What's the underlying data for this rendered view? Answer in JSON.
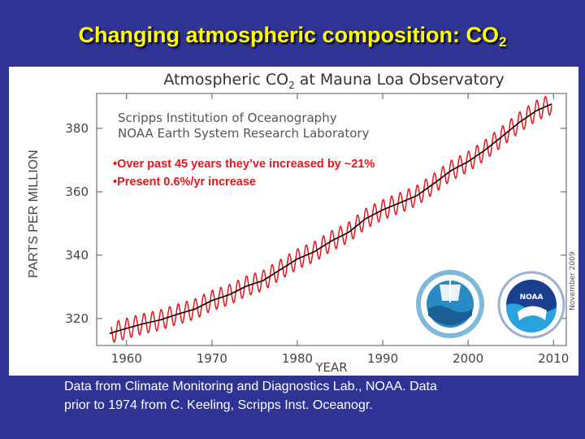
{
  "slide": {
    "title_main": "Changing atmospheric composition: CO",
    "title_sub": "2",
    "footer_line1": "Data from Climate Monitoring and Diagnostics Lab., NOAA. Data",
    "footer_line2": "prior to 1974 from C. Keeling, Scripps Inst. Oceanogr."
  },
  "chart_data": {
    "type": "line",
    "title_main": "Atmospheric CO",
    "title_sub": "2",
    "title_rest": " at Mauna Loa Observatory",
    "credit_line1": "Scripps Institution of Oceanography",
    "credit_line2": "NOAA Earth System Research Laboratory",
    "annotations": [
      "•Over past 45 years they’ve increased by ~21%",
      "•Present 0.6%/yr increase"
    ],
    "xlabel": "YEAR",
    "ylabel": "PARTS PER MILLION",
    "date_stamp": "November 2009",
    "logos": [
      "Scripps Institution of Oceanography seal",
      "NOAA logo"
    ],
    "xlim": [
      1956.5,
      2011.5
    ],
    "ylim": [
      311.5,
      391
    ],
    "xticks": [
      1960,
      1970,
      1980,
      1990,
      2000,
      2010
    ],
    "xtick_labels": [
      "1960",
      "1970",
      "1980",
      "1990",
      "2000",
      "2010"
    ],
    "yticks": [
      320,
      340,
      360,
      380
    ],
    "ytick_labels": [
      "320",
      "340",
      "360",
      "380"
    ],
    "grid": false,
    "series": [
      {
        "kind": "monthly",
        "color": "#e8161a",
        "x_range": [
          1958.2,
          2009.8
        ],
        "seasonal_amplitude_ppm": 3.2
      },
      {
        "kind": "annual_trend",
        "color": "#000000",
        "x": [
          1958,
          1960,
          1962,
          1964,
          1966,
          1968,
          1970,
          1972,
          1974,
          1976,
          1978,
          1980,
          1982,
          1984,
          1986,
          1988,
          1990,
          1992,
          1994,
          1996,
          1998,
          2000,
          2002,
          2004,
          2006,
          2008,
          2009.8
        ],
        "y": [
          315.3,
          316.9,
          318.4,
          319.6,
          321.4,
          323.0,
          325.7,
          327.5,
          330.2,
          332.0,
          335.4,
          338.8,
          341.1,
          344.5,
          347.2,
          351.5,
          354.3,
          356.5,
          358.8,
          362.6,
          366.7,
          369.5,
          373.2,
          377.5,
          381.9,
          385.6,
          387.7
        ]
      }
    ]
  }
}
